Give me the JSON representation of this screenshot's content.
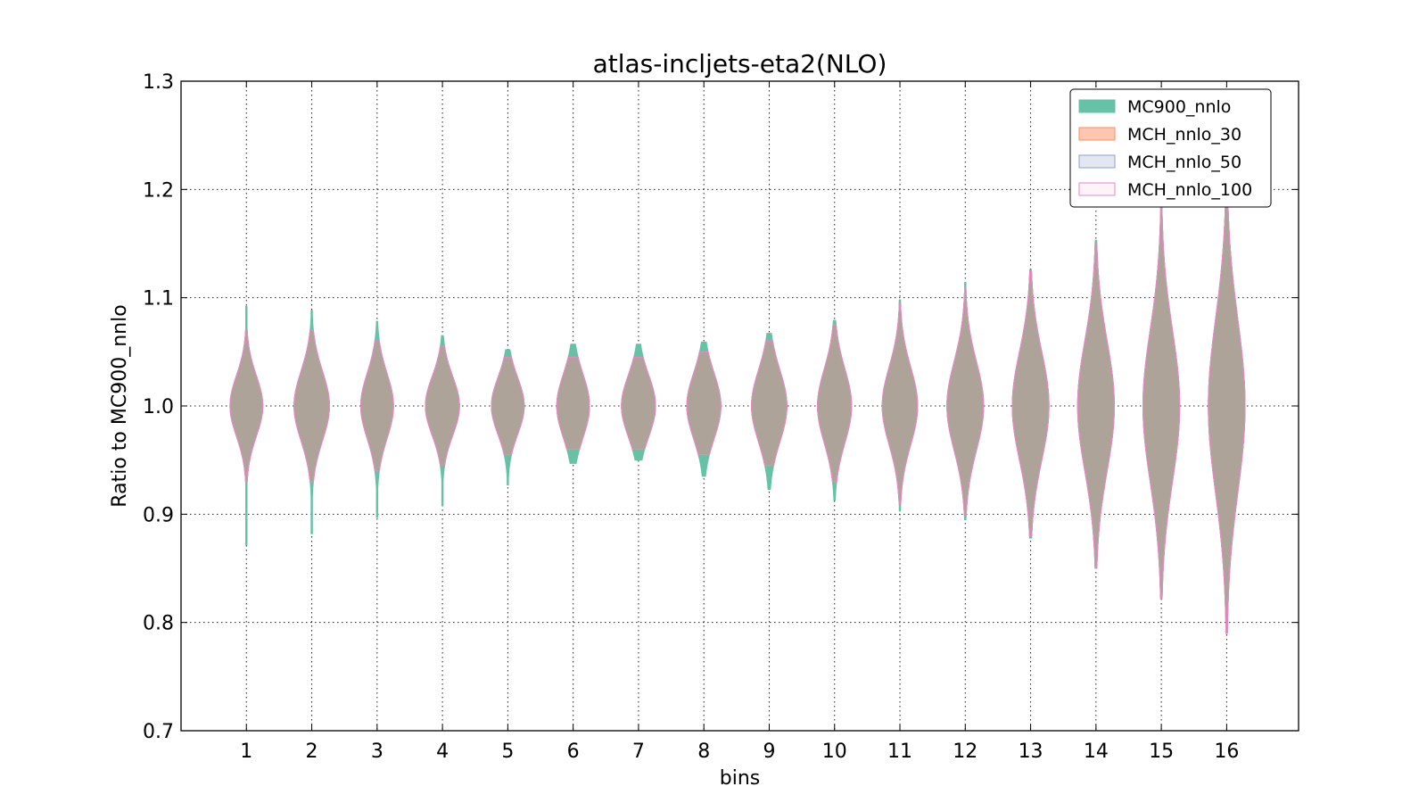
{
  "chart_data": {
    "type": "violin",
    "title": "atlas-incljets-eta2(NLO)",
    "xlabel": "bins",
    "ylabel": "Ratio to MC900_nnlo",
    "ylim": [
      0.7,
      1.3
    ],
    "xlim": [
      0,
      17.1
    ],
    "yticks": [
      "0.7",
      "0.8",
      "0.9",
      "1.0",
      "1.1",
      "1.2",
      "1.3"
    ],
    "categories": [
      "1",
      "2",
      "3",
      "4",
      "5",
      "6",
      "7",
      "8",
      "9",
      "10",
      "11",
      "12",
      "13",
      "14",
      "15",
      "16"
    ],
    "grid": true,
    "legend_position": "top-right",
    "series": [
      {
        "name": "MC900_nnlo",
        "color": "#66c2a5",
        "fill_alpha": 1.0,
        "center": [
          1.0,
          1.0,
          1.0,
          1.0,
          1.0,
          1.0,
          1.0,
          1.0,
          1.0,
          1.0,
          1.0,
          1.0,
          1.0,
          1.0,
          1.0,
          1.0
        ],
        "min": [
          0.872,
          0.882,
          0.897,
          0.908,
          0.927,
          0.947,
          0.95,
          0.935,
          0.923,
          0.913,
          0.903,
          0.895,
          0.878,
          0.85,
          0.822,
          0.79
        ],
        "max": [
          1.092,
          1.088,
          1.078,
          1.065,
          1.052,
          1.057,
          1.057,
          1.059,
          1.067,
          1.079,
          1.098,
          1.114,
          1.126,
          1.153,
          1.19,
          1.19
        ],
        "spread": [
          0.028,
          0.032,
          0.03,
          0.027,
          0.026,
          0.029,
          0.028,
          0.03,
          0.033,
          0.034,
          0.036,
          0.041,
          0.05,
          0.06,
          0.07,
          0.08
        ],
        "halfwidth": [
          0.25,
          0.27,
          0.25,
          0.26,
          0.25,
          0.25,
          0.26,
          0.26,
          0.27,
          0.26,
          0.27,
          0.28,
          0.28,
          0.28,
          0.28,
          0.28
        ]
      },
      {
        "name": "MCH_nnlo_30",
        "color": "#fc8d62",
        "fill_alpha": 0.5,
        "center": [
          1.0,
          1.0,
          1.0,
          1.0,
          1.0,
          1.0,
          1.0,
          1.0,
          1.0,
          1.0,
          1.0,
          1.0,
          1.0,
          1.0,
          1.0,
          1.0
        ],
        "min": [
          0.93,
          0.93,
          0.94,
          0.945,
          0.955,
          0.96,
          0.96,
          0.955,
          0.945,
          0.93,
          0.91,
          0.9,
          0.88,
          0.85,
          0.822,
          0.79
        ],
        "max": [
          1.07,
          1.07,
          1.06,
          1.055,
          1.045,
          1.045,
          1.045,
          1.05,
          1.06,
          1.075,
          1.095,
          1.11,
          1.125,
          1.15,
          1.19,
          1.19
        ],
        "spread": [
          0.028,
          0.032,
          0.03,
          0.027,
          0.026,
          0.029,
          0.028,
          0.03,
          0.033,
          0.034,
          0.036,
          0.041,
          0.05,
          0.06,
          0.07,
          0.08
        ],
        "halfwidth": [
          0.25,
          0.27,
          0.25,
          0.26,
          0.25,
          0.25,
          0.26,
          0.26,
          0.27,
          0.26,
          0.27,
          0.28,
          0.28,
          0.28,
          0.28,
          0.28
        ]
      },
      {
        "name": "MCH_nnlo_50",
        "color": "#8da0cb",
        "fill_alpha": 0.25,
        "center": [
          1.0,
          1.0,
          1.0,
          1.0,
          1.0,
          1.0,
          1.0,
          1.0,
          1.0,
          1.0,
          1.0,
          1.0,
          1.0,
          1.0,
          1.0,
          1.0
        ],
        "min": [
          0.93,
          0.93,
          0.94,
          0.945,
          0.955,
          0.96,
          0.96,
          0.955,
          0.945,
          0.93,
          0.91,
          0.9,
          0.88,
          0.85,
          0.822,
          0.79
        ],
        "max": [
          1.07,
          1.07,
          1.06,
          1.055,
          1.045,
          1.045,
          1.045,
          1.05,
          1.06,
          1.075,
          1.095,
          1.11,
          1.125,
          1.15,
          1.19,
          1.19
        ],
        "spread": [
          0.028,
          0.032,
          0.03,
          0.027,
          0.026,
          0.029,
          0.028,
          0.03,
          0.033,
          0.034,
          0.036,
          0.041,
          0.05,
          0.06,
          0.07,
          0.08
        ],
        "halfwidth": [
          0.25,
          0.27,
          0.25,
          0.26,
          0.25,
          0.25,
          0.26,
          0.26,
          0.27,
          0.26,
          0.27,
          0.28,
          0.28,
          0.28,
          0.28,
          0.28
        ]
      },
      {
        "name": "MCH_nnlo_100",
        "color": "#e78ac3",
        "fill_alpha": 0.1,
        "center": [
          1.0,
          1.0,
          1.0,
          1.0,
          1.0,
          1.0,
          1.0,
          1.0,
          1.0,
          1.0,
          1.0,
          1.0,
          1.0,
          1.0,
          1.0,
          1.0
        ],
        "min": [
          0.93,
          0.93,
          0.94,
          0.945,
          0.955,
          0.96,
          0.96,
          0.955,
          0.945,
          0.93,
          0.91,
          0.9,
          0.88,
          0.85,
          0.822,
          0.79
        ],
        "max": [
          1.07,
          1.07,
          1.06,
          1.055,
          1.045,
          1.045,
          1.045,
          1.05,
          1.06,
          1.075,
          1.095,
          1.11,
          1.125,
          1.15,
          1.19,
          1.19
        ],
        "spread": [
          0.028,
          0.032,
          0.03,
          0.027,
          0.026,
          0.029,
          0.028,
          0.03,
          0.033,
          0.034,
          0.036,
          0.041,
          0.05,
          0.06,
          0.07,
          0.08
        ],
        "halfwidth": [
          0.25,
          0.27,
          0.25,
          0.26,
          0.25,
          0.25,
          0.26,
          0.26,
          0.27,
          0.26,
          0.27,
          0.28,
          0.28,
          0.28,
          0.28,
          0.28
        ]
      }
    ]
  }
}
